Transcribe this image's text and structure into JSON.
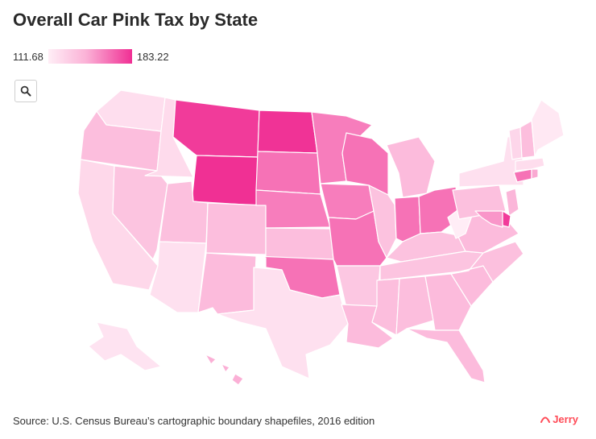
{
  "title": "Overall Car Pink Tax by State",
  "legend": {
    "min_label": "111.68",
    "max_label": "183.22",
    "min": 111.68,
    "max": 183.22
  },
  "zoom": {
    "icon": "search-icon"
  },
  "source": "Source: U.S. Census Bureau’s cartographic boundary shapefiles, 2016 edition",
  "brand": {
    "name": "Jerry",
    "color": "#ff4b57"
  },
  "colors": {
    "low": "#ffeef6",
    "mid": "#fbb2d7",
    "high": "#f02f94",
    "border": "#ffffff"
  },
  "chart_data": {
    "type": "heatmap",
    "title": "Overall Car Pink Tax by State",
    "value_range": [
      111.68,
      183.22
    ],
    "legend_placement": "top-left",
    "states": [
      {
        "state": "WA",
        "value": 121
      },
      {
        "state": "OR",
        "value": 140
      },
      {
        "state": "CA",
        "value": 125
      },
      {
        "state": "NV",
        "value": 137
      },
      {
        "state": "ID",
        "value": 123
      },
      {
        "state": "MT",
        "value": 180
      },
      {
        "state": "WY",
        "value": 183
      },
      {
        "state": "UT",
        "value": 139
      },
      {
        "state": "AZ",
        "value": 120
      },
      {
        "state": "CO",
        "value": 140
      },
      {
        "state": "NM",
        "value": 142
      },
      {
        "state": "ND",
        "value": 182
      },
      {
        "state": "SD",
        "value": 165
      },
      {
        "state": "NE",
        "value": 162
      },
      {
        "state": "KS",
        "value": 140
      },
      {
        "state": "OK",
        "value": 165
      },
      {
        "state": "TX",
        "value": 120
      },
      {
        "state": "MN",
        "value": 162
      },
      {
        "state": "IA",
        "value": 162
      },
      {
        "state": "MO",
        "value": 165
      },
      {
        "state": "AR",
        "value": 135
      },
      {
        "state": "LA",
        "value": 142
      },
      {
        "state": "WI",
        "value": 165
      },
      {
        "state": "IL",
        "value": 138
      },
      {
        "state": "MI",
        "value": 142
      },
      {
        "state": "IN",
        "value": 165
      },
      {
        "state": "OH",
        "value": 165
      },
      {
        "state": "KY",
        "value": 138
      },
      {
        "state": "TN",
        "value": 137
      },
      {
        "state": "MS",
        "value": 140
      },
      {
        "state": "AL",
        "value": 140
      },
      {
        "state": "GA",
        "value": 142
      },
      {
        "state": "FL",
        "value": 142
      },
      {
        "state": "SC",
        "value": 142
      },
      {
        "state": "NC",
        "value": 139
      },
      {
        "state": "VA",
        "value": 142
      },
      {
        "state": "WV",
        "value": 112
      },
      {
        "state": "PA",
        "value": 139
      },
      {
        "state": "NY",
        "value": 120
      },
      {
        "state": "NJ",
        "value": 145
      },
      {
        "state": "DE",
        "value": 180
      },
      {
        "state": "MD",
        "value": 155
      },
      {
        "state": "CT",
        "value": 165
      },
      {
        "state": "RI",
        "value": 150
      },
      {
        "state": "MA",
        "value": 122
      },
      {
        "state": "VT",
        "value": 126
      },
      {
        "state": "NH",
        "value": 140
      },
      {
        "state": "ME",
        "value": 115
      },
      {
        "state": "AK",
        "value": 118
      },
      {
        "state": "HI",
        "value": 148
      }
    ]
  }
}
